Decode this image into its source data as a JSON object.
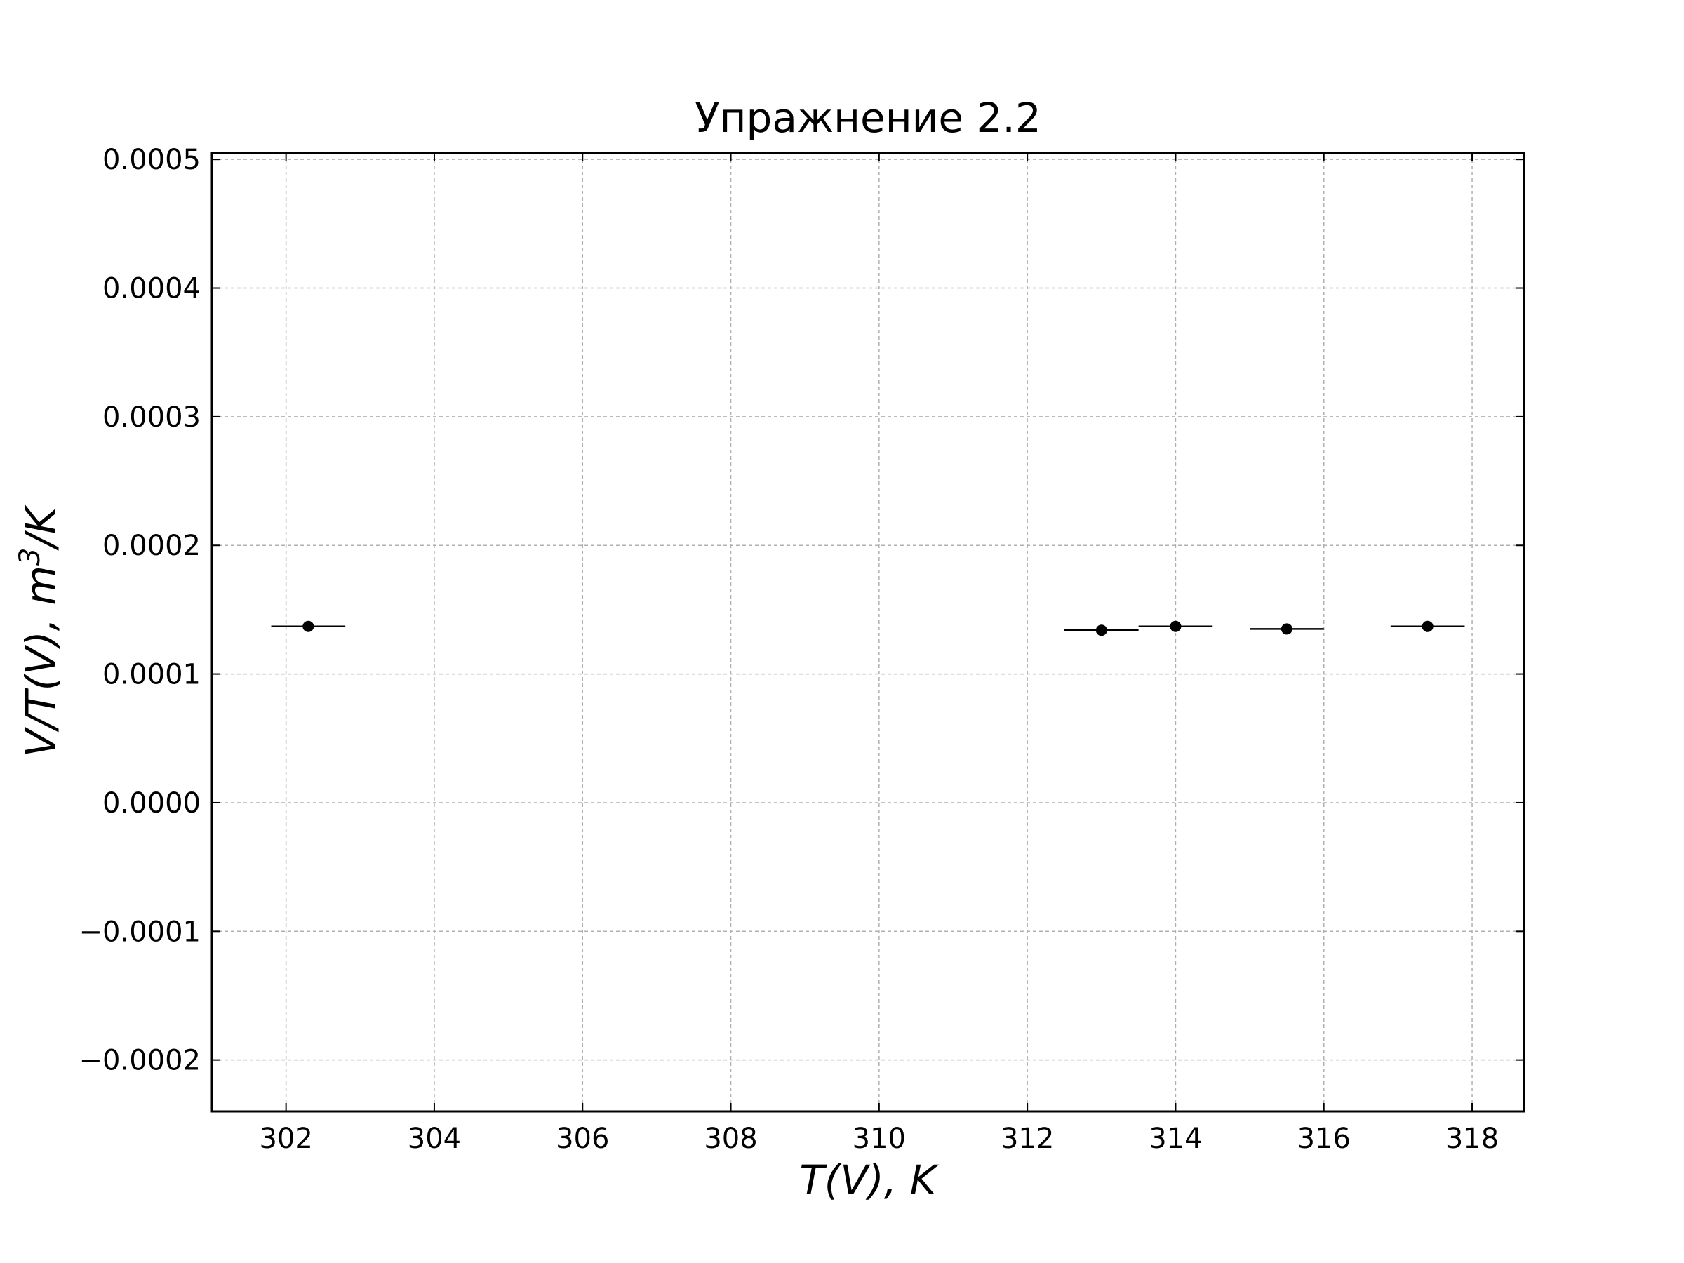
{
  "chart_data": {
    "type": "scatter",
    "title": "Упражнение 2.2",
    "xlabel": "T(V), K",
    "ylabel": "V/T(V), m³/K",
    "ylabel_parts": {
      "main": "V/T(V), m",
      "sup": "3",
      "tail": "/K"
    },
    "xlim": [
      301.0,
      318.7
    ],
    "ylim": [
      -0.00024,
      0.000505
    ],
    "x_ticks": [
      302,
      304,
      306,
      308,
      310,
      312,
      314,
      316,
      318
    ],
    "x_tick_labels": [
      "302",
      "304",
      "306",
      "308",
      "310",
      "312",
      "314",
      "316",
      "318"
    ],
    "y_ticks": [
      -0.0002,
      -0.0001,
      0.0,
      0.0001,
      0.0002,
      0.0003,
      0.0004,
      0.0005
    ],
    "y_tick_labels": [
      "−0.0002",
      "−0.0001",
      "0.0000",
      "0.0001",
      "0.0002",
      "0.0003",
      "0.0004",
      "0.0005"
    ],
    "grid": true,
    "marker_color": "#000000",
    "grid_color": "#b0b0b0",
    "points": [
      {
        "x": 302.3,
        "y": 0.000137,
        "xerr": 0.5
      },
      {
        "x": 313.0,
        "y": 0.000134,
        "xerr": 0.5
      },
      {
        "x": 314.0,
        "y": 0.000137,
        "xerr": 0.5
      },
      {
        "x": 315.5,
        "y": 0.000135,
        "xerr": 0.5
      },
      {
        "x": 317.4,
        "y": 0.000137,
        "xerr": 0.5
      }
    ]
  }
}
